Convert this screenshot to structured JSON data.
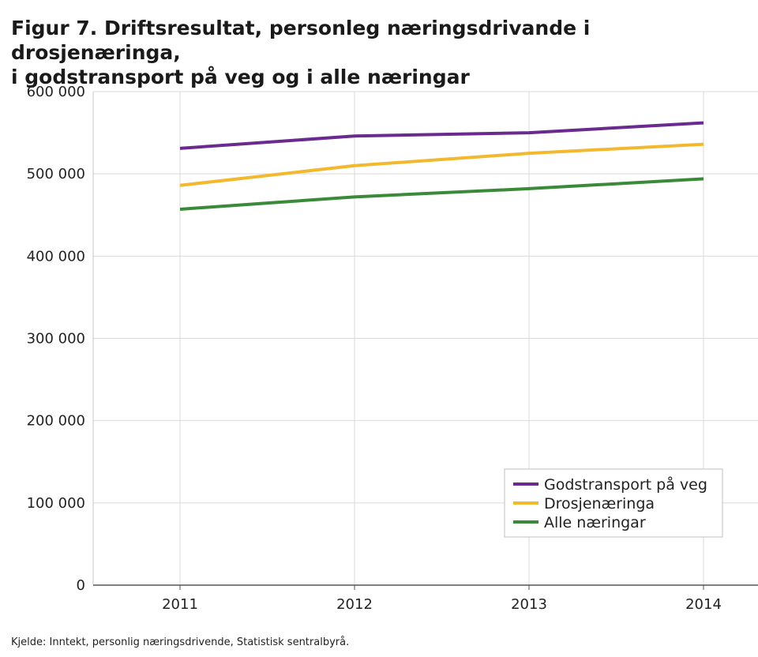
{
  "title_line1": "Figur 7. Driftsresultat, personleg næringsdrivande i drosjenæringa,",
  "title_line2": "i godstransport på veg og i alle næringar",
  "source": "Kjelde: Inntekt, personlig næringsdrivende, Statistisk sentralbyrå.",
  "chart_data": {
    "type": "line",
    "title": "Figur 7. Driftsresultat, personleg næringsdrivande i drosjenæringa, i godstransport på veg og i alle næringar",
    "x": [
      "2011",
      "2012",
      "2013",
      "2014"
    ],
    "xlabel": "",
    "ylabel": "",
    "ylim": [
      0,
      600000
    ],
    "yticks": [
      0,
      100000,
      200000,
      300000,
      400000,
      500000,
      600000
    ],
    "ytick_labels": [
      "0",
      "100 000",
      "200 000",
      "300 000",
      "400 000",
      "500 000",
      "600 000"
    ],
    "grid": true,
    "legend_position": "bottom-right",
    "series": [
      {
        "name": "Godstransport på veg",
        "color": "#6a2a8e",
        "values": [
          531000,
          546000,
          550000,
          562000
        ]
      },
      {
        "name": "Drosjenæringa",
        "color": "#f2b82e",
        "values": [
          486000,
          510000,
          525000,
          536000
        ]
      },
      {
        "name": "Alle næringar",
        "color": "#3a8a3a",
        "values": [
          457000,
          472000,
          482000,
          494000
        ]
      }
    ]
  }
}
